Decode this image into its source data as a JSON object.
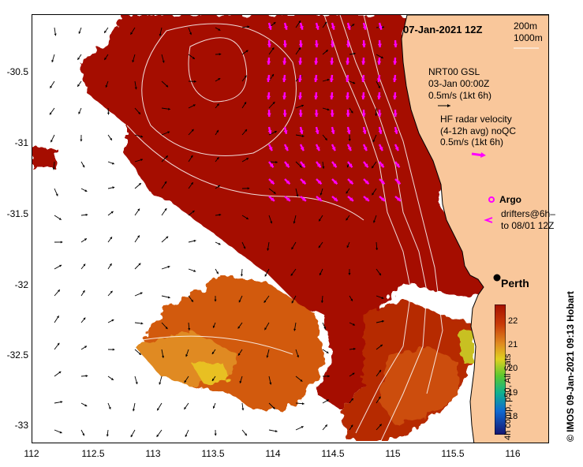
{
  "title": "07-Jan-2021 12Z",
  "depth_contours": {
    "line1": "200m",
    "line2": "1000m"
  },
  "legend": {
    "model": {
      "line1": "NRT00 GSL",
      "line2": "03-Jan 00:00Z",
      "line3": "0.5m/s (1kt 6h)"
    },
    "radar": {
      "line1": "HF radar velocity",
      "line2": "(4-12h avg) noQC",
      "line3": "0.5m/s (1kt 6h)"
    },
    "argo": "Argo",
    "drifters": {
      "line1": "drifters@6h–",
      "line2": "to 08/01 12Z"
    }
  },
  "city": "Perth",
  "credit": "©  IMOS 09-Jan-2021 09:13 Hobart",
  "colorbar": {
    "label": "4h comp, p50, All Sats",
    "ticks": [
      "22",
      "21",
      "20",
      "19",
      "18"
    ],
    "range": [
      17.6,
      22.8
    ]
  },
  "axes": {
    "x_ticks": [
      "112",
      "112.5",
      "113",
      "113.5",
      "114",
      "114.5",
      "115",
      "115.5",
      "116"
    ],
    "y_ticks": [
      "-30.5",
      "-31",
      "-31.5",
      "-32",
      "-32.5",
      "-33"
    ]
  },
  "colors": {
    "land": "#f9c79b",
    "sst_warm": "#a51000",
    "model_arrow": "#000000",
    "radar_arrow": "#ff00ff"
  }
}
